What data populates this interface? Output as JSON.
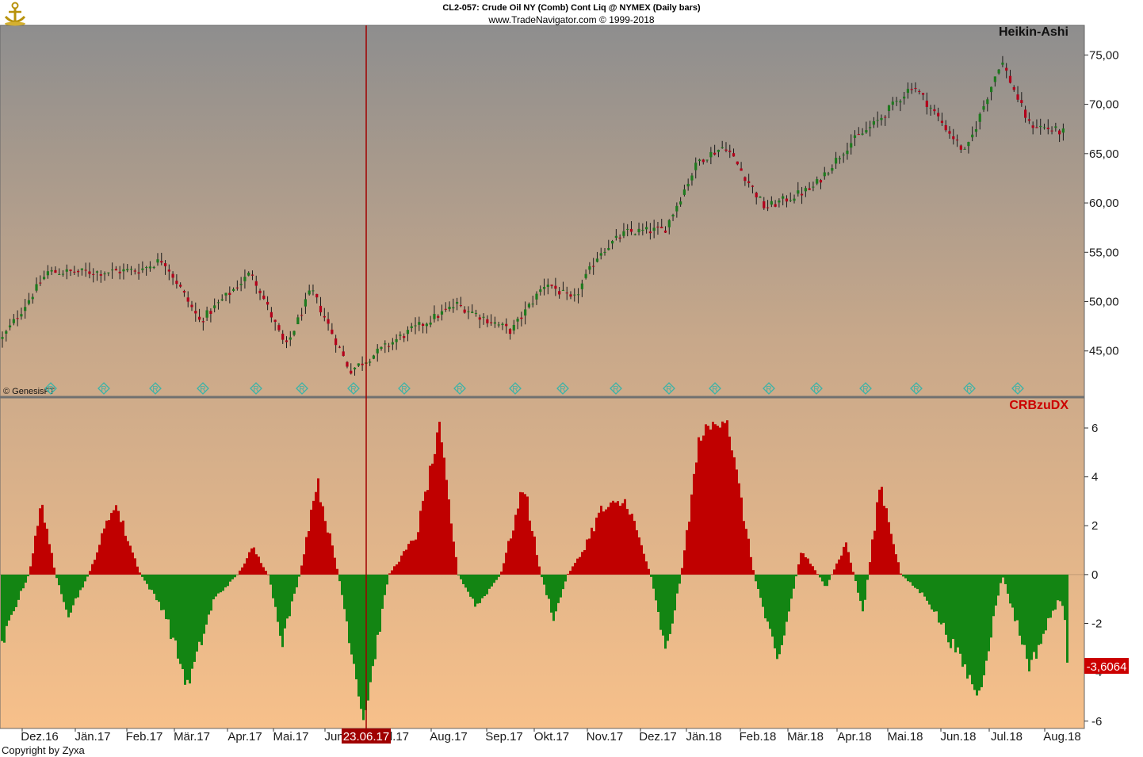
{
  "header": {
    "title": "CL2-057:  Crude Oil NY (Comb) Cont Liq @ NYMEX  (Daily bars)",
    "subtitle": "www.TradeNavigator.com © 1999-2018",
    "logo_icon": "anchor-logo-icon"
  },
  "upper_panel": {
    "name": "Heikin-Ashi",
    "watermark": "© GenesisFT",
    "marker_icon": "diamond-r-icon",
    "marker_label": "R"
  },
  "lower_panel": {
    "name": "CRBzuDX",
    "last_value": "-3,6064"
  },
  "crosshair": {
    "date_label": "23.06.17"
  },
  "footer": {
    "copyright": "Copyright by Zyxa"
  },
  "colors": {
    "up": "#1e7a1e",
    "down": "#b3001b",
    "hist_pos": "#c00000",
    "hist_neg": "#138513",
    "crosshair": "#a00000",
    "label_red": "#cc0000",
    "gradient_top": "#8e8e8e",
    "gradient_bottom": "#f7c08a"
  },
  "chart_data": [
    {
      "type": "candlestick",
      "title": "Heikin-Ashi",
      "yticks": [
        "75,00",
        "70,00",
        "65,00",
        "60,00",
        "55,00",
        "50,00",
        "45,00"
      ],
      "ytick_values": [
        75,
        70,
        65,
        60,
        55,
        50,
        45
      ],
      "ylim": [
        40.4,
        78.0
      ],
      "grid": false,
      "x_months": [
        "Dez.16",
        "Jän.17",
        "Feb.17",
        "Mär.17",
        "Apr.17",
        "Mai.17",
        "Jun.17",
        "Jul.17",
        "Aug.17",
        "Sep.17",
        "Okt.17",
        "Nov.17",
        "Dez.17",
        "Jän.18",
        "Feb.18",
        "Mär.18",
        "Apr.18",
        "Mai.18",
        "Jun.18",
        "Jul.18",
        "Aug.18"
      ],
      "price_path": [
        [
          "Nov.16",
          46.0
        ],
        [
          "Dez.16",
          53.0
        ],
        [
          "Jän.17",
          53.0
        ],
        [
          "Feb.17",
          53.2
        ],
        [
          "Feb.17",
          54.3
        ],
        [
          "Mär.17",
          48.0
        ],
        [
          "Apr.17",
          53.0
        ],
        [
          "Mai.17",
          45.3
        ],
        [
          "Mai.17",
          51.2
        ],
        [
          "Jun.17",
          43.0
        ],
        [
          "Jul.17",
          46.5
        ],
        [
          "Aug.17",
          49.7
        ],
        [
          "Sep.17",
          47.0
        ],
        [
          "Okt.17",
          52.0
        ],
        [
          "Okt.17",
          50.0
        ],
        [
          "Nov.17",
          55.0
        ],
        [
          "Nov.17",
          57.0
        ],
        [
          "Dez.17",
          57.3
        ],
        [
          "Jän.18",
          64.3
        ],
        [
          "Jän.18",
          65.8
        ],
        [
          "Feb.18",
          59.5
        ],
        [
          "Mär.18",
          61.5
        ],
        [
          "Apr.18",
          66.0
        ],
        [
          "Apr.18",
          68.0
        ],
        [
          "Mai.18",
          72.0
        ],
        [
          "Jun.18",
          65.0
        ],
        [
          "Jul.18",
          74.5
        ],
        [
          "Jul.18",
          68.0
        ],
        [
          "Aug.18",
          67.0
        ]
      ],
      "r_markers": [
        "Dez.16",
        "Jän.17",
        "Feb.17",
        "Mär.17",
        "Apr.17",
        "Mai.17",
        "Jun.17",
        "Jul.17",
        "Aug.17",
        "Sep.17",
        "Okt.17",
        "Nov.17",
        "Dez.17",
        "Jän.18",
        "Feb.18",
        "Mär.18",
        "Apr.18",
        "Mai.18",
        "Jun.18",
        "Jul.18"
      ]
    },
    {
      "type": "histogram",
      "title": "CRBzuDX",
      "yticks": [
        "6",
        "4",
        "2",
        "0",
        "-2",
        "-4",
        "-6"
      ],
      "ytick_values": [
        6,
        4,
        2,
        0,
        -2,
        -4,
        -6
      ],
      "ylim": [
        -6.3,
        7.2
      ],
      "last_value": -3.6064,
      "value_path": [
        [
          "Nov.16",
          -4.5
        ],
        [
          "Nov.16",
          -1.5
        ],
        [
          "Dez.16",
          0.0
        ],
        [
          "Dez.16",
          3.0
        ],
        [
          "Dez.16",
          0.0
        ],
        [
          "Dez.16",
          -1.6
        ],
        [
          "Jän.17",
          0.0
        ],
        [
          "Jän.17",
          3.0
        ],
        [
          "Feb.17",
          0.0
        ],
        [
          "Feb.17",
          -1.5
        ],
        [
          "Mär.17",
          -4.6
        ],
        [
          "Mär.17",
          -1.0
        ],
        [
          "Apr.17",
          0.0
        ],
        [
          "Apr.17",
          1.1
        ],
        [
          "Apr.17",
          0.0
        ],
        [
          "Mai.17",
          -2.7
        ],
        [
          "Mai.17",
          0.0
        ],
        [
          "Mai.17",
          3.9
        ],
        [
          "Jun.17",
          0.0
        ],
        [
          "Jun.17",
          -6.0
        ],
        [
          "Jul.17",
          0.0
        ],
        [
          "Jul.17",
          1.6
        ],
        [
          "Aug.17",
          6.0
        ],
        [
          "Aug.17",
          0.0
        ],
        [
          "Aug.17",
          -1.3
        ],
        [
          "Sep.17",
          0.0
        ],
        [
          "Sep.17",
          3.7
        ],
        [
          "Okt.17",
          0.0
        ],
        [
          "Okt.17",
          -1.8
        ],
        [
          "Okt.17",
          0.0
        ],
        [
          "Okt.17",
          0.8
        ],
        [
          "Nov.17",
          2.6
        ],
        [
          "Nov.17",
          3.0
        ],
        [
          "Dez.17",
          0.0
        ],
        [
          "Dez.17",
          -3.3
        ],
        [
          "Dez.17",
          0.0
        ],
        [
          "Jän.18",
          5.7
        ],
        [
          "Jän.18",
          6.5
        ],
        [
          "Feb.18",
          0.0
        ],
        [
          "Feb.18",
          -3.7
        ],
        [
          "Mär.18",
          1.0
        ],
        [
          "Mär.18",
          -0.5
        ],
        [
          "Apr.18",
          1.3
        ],
        [
          "Apr.18",
          -1.6
        ],
        [
          "Apr.18",
          3.8
        ],
        [
          "Mai.18",
          0.0
        ],
        [
          "Mai.18",
          -1.0
        ],
        [
          "Jun.18",
          -3.0
        ],
        [
          "Jun.18",
          -5.0
        ],
        [
          "Jul.18",
          0.0
        ],
        [
          "Jul.18",
          -3.8
        ],
        [
          "Aug.18",
          -1.0
        ],
        [
          "Aug.18",
          -3.6
        ]
      ]
    }
  ]
}
